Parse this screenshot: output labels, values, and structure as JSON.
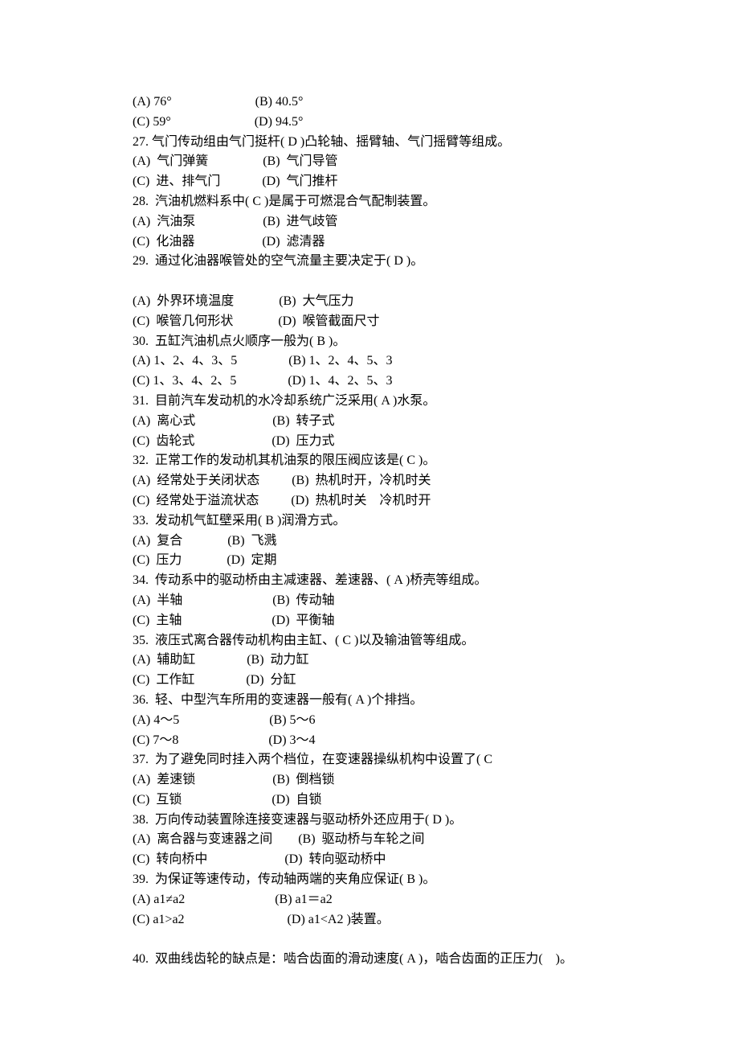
{
  "text": {
    "l1": "(A) 76°                          (B) 40.5°",
    "l2": "(C) 59°                          (D) 94.5°",
    "l3": "27. 气门传动组由气门挺杆( D )凸轮轴、摇臂轴、气门摇臂等组成。",
    "l4": "(A)  气门弹簧                 (B)  气门导管",
    "l5": "(C)  进、排气门             (D)  气门推杆",
    "l6": "28.  汽油机燃料系中( C )是属于可燃混合气配制装置。",
    "l7": "(A)  汽油泵                     (B)  进气歧管",
    "l8": "(C)  化油器                     (D)  滤清器",
    "l9": "29.  通过化油器喉管处的空气流量主要决定于( D )。",
    "l10": "",
    "l11": "(A)  外界环境温度              (B)  大气压力",
    "l12": "(C)  喉管几何形状              (D)  喉管截面尺寸",
    "l13": "30.  五缸汽油机点火顺序一般为( B )。",
    "l14": "(A) 1、2、4、3、5                (B) 1、2、4、5、3",
    "l15": "(C) 1、3、4、2、5                (D) 1、4、2、5、3",
    "l16": "31.  目前汽车发动机的水冷却系统广泛采用( A )水泵。",
    "l17": "(A)  离心式                        (B)  转子式",
    "l18": "(C)  齿轮式                        (D)  压力式",
    "l19": "32.  正常工作的发动机其机油泵的限压阀应该是( C )。",
    "l20": "(A)  经常处于关闭状态          (B)  热机时开，冷机时关",
    "l21": "(C)  经常处于溢流状态          (D)  热机时关    冷机时开",
    "l22": "33.  发动机气缸壁采用( B )润滑方式。",
    "l23": "(A)  复合              (B)  飞溅",
    "l24": "(C)  压力              (D)  定期",
    "l25": "34.  传动系中的驱动桥由主减速器、差速器、( A )桥壳等组成。",
    "l26": "(A)  半轴                            (B)  传动轴",
    "l27": "(C)  主轴                            (D)  平衡轴",
    "l28": "35.  液压式离合器传动机构由主缸、( C )以及输油管等组成。",
    "l29": "(A)  辅助缸                (B)  动力缸",
    "l30": "(C)  工作缸                (D)  分缸",
    "l31": "36.  轻、中型汽车所用的变速器一般有( A )个排挡。",
    "l32": "(A) 4～5                            (B) 5～6",
    "l33": "(C) 7～8                            (D) 3～4",
    "l34": "37.  为了避免同时挂入两个档位，在变速器操纵机构中设置了( C",
    "l35": "(A)  差速锁                        (B)  倒档锁",
    "l36": "(C)  互锁                            (D)  自锁",
    "l37": "38.  万向传动装置除连接变速器与驱动桥外还应用于( D )。",
    "l38": "(A)  离合器与变速器之间        (B)  驱动桥与车轮之间",
    "l39": "(C)  转向桥中                        (D)  转向驱动桥中",
    "l40": "39.  为保证等速传动，传动轴两端的夹角应保证( B )。",
    "l41": "(A) a1≠a2                            (B) a1＝a2",
    "l42": "(C) a1>a2                                (D) a1<A2 )装置。",
    "l43": "",
    "l44": "40.  双曲线齿轮的缺点是：啮合齿面的滑动速度( A )，啮合齿面的正压力(    )。"
  }
}
